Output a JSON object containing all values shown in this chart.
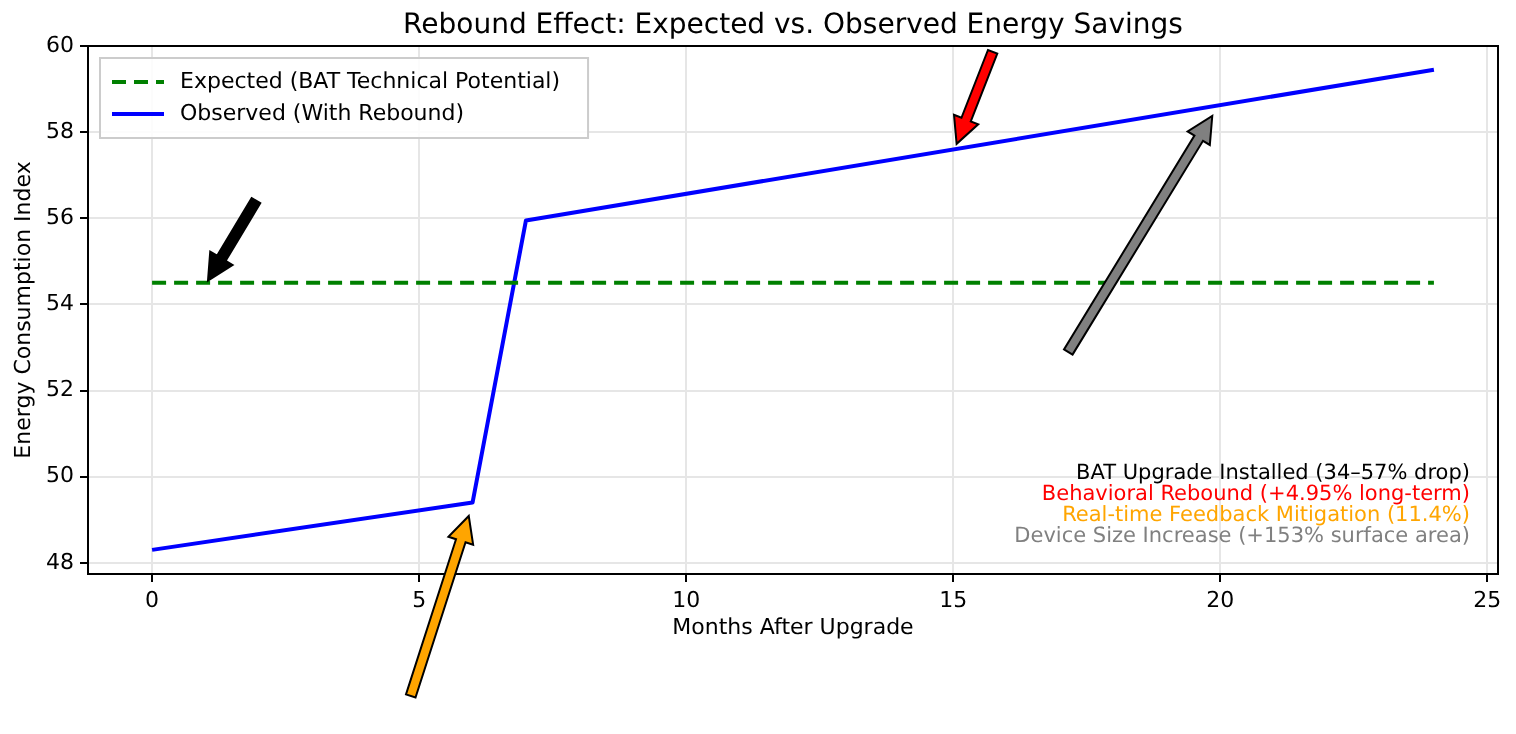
{
  "chart_data": {
    "type": "line",
    "title": "Rebound Effect: Expected vs. Observed Energy Savings",
    "xlabel": "Months After Upgrade",
    "ylabel": "Energy Consumption Index",
    "series": [
      {
        "name": "Expected (BAT Technical Potential)",
        "color": "#008000",
        "x": [
          0,
          24
        ],
        "values": [
          54.5,
          54.5
        ],
        "line_style": "dashed"
      },
      {
        "name": "Observed (With Rebound)",
        "color": "#0000ff",
        "x": [
          0,
          6,
          7,
          24
        ],
        "values": [
          48.3,
          49.4,
          55.95,
          59.45
        ],
        "line_style": "solid"
      }
    ],
    "xlim": [
      -1.2,
      25.2
    ],
    "xticks": [
      0,
      5,
      10,
      15,
      20,
      25
    ],
    "ylim": [
      47.74,
      60
    ],
    "yticks": [
      48,
      50,
      52,
      54,
      56,
      58,
      60
    ],
    "grid": true,
    "legend": "top left",
    "marker": "none",
    "annotations": [
      "BAT Upgrade Installed (34–57% drop)",
      "Behavioral Rebound (+4.95% long-term)",
      "Real-time Feedback Mitigation (11.4%)",
      "Device Size Increase (+153% surface area)"
    ]
  }
}
